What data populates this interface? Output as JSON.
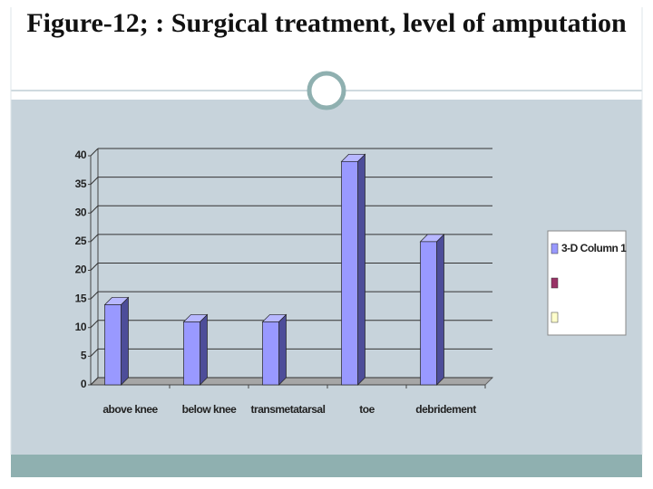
{
  "chart_data": {
    "type": "bar3d",
    "title": "Figure-12; : Surgical treatment, level of amputation",
    "categories": [
      "above knee",
      "below knee",
      "transmetatarsal",
      "toe",
      "debridement"
    ],
    "series": [
      {
        "name": "3-D Column 1",
        "color": "#9999ff",
        "values": [
          14,
          11,
          11,
          39,
          25
        ]
      }
    ],
    "ylim": [
      0,
      40
    ],
    "yticks": [
      0,
      5,
      10,
      15,
      20,
      25,
      30,
      35,
      40
    ],
    "grid": true,
    "legend": "right"
  }
}
